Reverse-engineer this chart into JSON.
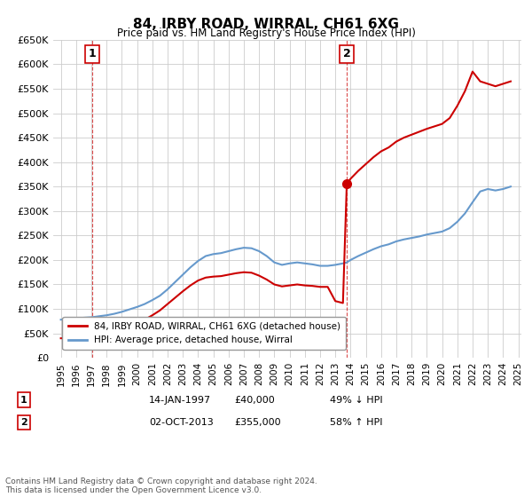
{
  "title": "84, IRBY ROAD, WIRRAL, CH61 6XG",
  "subtitle": "Price paid vs. HM Land Registry's House Price Index (HPI)",
  "xlabel": "",
  "ylabel": "",
  "ylim": [
    0,
    650000
  ],
  "ytick_step": 50000,
  "background_color": "#ffffff",
  "grid_color": "#cccccc",
  "point1_label": "1",
  "point1_date": "14-JAN-1997",
  "point1_price": "£40,000",
  "point1_hpi": "49% ↓ HPI",
  "point1_x": 1997.04,
  "point1_y": 40000,
  "point2_label": "2",
  "point2_date": "02-OCT-2013",
  "point2_price": "£355,000",
  "point2_hpi": "58% ↑ HPI",
  "point2_x": 2013.75,
  "point2_y": 355000,
  "red_color": "#cc0000",
  "blue_color": "#6699cc",
  "legend_label_red": "84, IRBY ROAD, WIRRAL, CH61 6XG (detached house)",
  "legend_label_blue": "HPI: Average price, detached house, Wirral",
  "footnote": "Contains HM Land Registry data © Crown copyright and database right 2024.\nThis data is licensed under the Open Government Licence v3.0.",
  "hpi_x": [
    1995.0,
    1995.5,
    1996.0,
    1996.5,
    1997.04,
    1997.5,
    1998.0,
    1998.5,
    1999.0,
    1999.5,
    2000.0,
    2000.5,
    2001.0,
    2001.5,
    2002.0,
    2002.5,
    2003.0,
    2003.5,
    2004.0,
    2004.5,
    2005.0,
    2005.5,
    2006.0,
    2006.5,
    2007.0,
    2007.5,
    2008.0,
    2008.5,
    2009.0,
    2009.5,
    2010.0,
    2010.5,
    2011.0,
    2011.5,
    2012.0,
    2012.5,
    2013.0,
    2013.5,
    2013.75,
    2014.0,
    2014.5,
    2015.0,
    2015.5,
    2016.0,
    2016.5,
    2017.0,
    2017.5,
    2018.0,
    2018.5,
    2019.0,
    2019.5,
    2020.0,
    2020.5,
    2021.0,
    2021.5,
    2022.0,
    2022.5,
    2023.0,
    2023.5,
    2024.0,
    2024.5
  ],
  "hpi_y": [
    78000,
    79000,
    80000,
    82000,
    83000,
    85000,
    87000,
    90000,
    94000,
    99000,
    104000,
    110000,
    118000,
    127000,
    140000,
    155000,
    170000,
    185000,
    198000,
    208000,
    212000,
    214000,
    218000,
    222000,
    225000,
    224000,
    218000,
    208000,
    195000,
    190000,
    193000,
    195000,
    193000,
    191000,
    188000,
    188000,
    190000,
    193000,
    195000,
    200000,
    208000,
    215000,
    222000,
    228000,
    232000,
    238000,
    242000,
    245000,
    248000,
    252000,
    255000,
    258000,
    265000,
    278000,
    295000,
    318000,
    340000,
    345000,
    342000,
    345000,
    350000
  ],
  "red_x": [
    1995.0,
    1995.5,
    1996.0,
    1996.5,
    1997.04,
    1997.5,
    1998.0,
    1998.5,
    1999.0,
    1999.5,
    2000.0,
    2000.5,
    2001.0,
    2001.5,
    2002.0,
    2002.5,
    2003.0,
    2003.5,
    2004.0,
    2004.5,
    2005.0,
    2005.5,
    2006.0,
    2006.5,
    2007.0,
    2007.5,
    2008.0,
    2008.5,
    2009.0,
    2009.5,
    2010.0,
    2010.5,
    2011.0,
    2011.5,
    2012.0,
    2012.5,
    2013.0,
    2013.5,
    2013.75,
    2014.0,
    2014.5,
    2015.0,
    2015.5,
    2016.0,
    2016.5,
    2017.0,
    2017.5,
    2018.0,
    2018.5,
    2019.0,
    2019.5,
    2020.0,
    2020.5,
    2021.0,
    2021.5,
    2022.0,
    2022.5,
    2023.0,
    2023.5,
    2024.0,
    2024.5
  ],
  "red_y": [
    40000,
    40000,
    40000,
    40000,
    40000,
    42000,
    45000,
    50000,
    56000,
    63000,
    70000,
    78000,
    87000,
    97000,
    110000,
    123000,
    136000,
    148000,
    158000,
    164000,
    166000,
    167000,
    170000,
    173000,
    175000,
    174000,
    168000,
    160000,
    150000,
    146000,
    148000,
    150000,
    148000,
    147000,
    145000,
    145000,
    116000,
    112000,
    355000,
    366000,
    382000,
    396000,
    410000,
    422000,
    430000,
    442000,
    450000,
    456000,
    462000,
    468000,
    473000,
    478000,
    490000,
    515000,
    545000,
    585000,
    565000,
    560000,
    555000,
    560000,
    565000
  ],
  "xtick_years": [
    1995,
    1996,
    1997,
    1998,
    1999,
    2000,
    2001,
    2002,
    2003,
    2004,
    2005,
    2006,
    2007,
    2008,
    2009,
    2010,
    2011,
    2012,
    2013,
    2014,
    2015,
    2016,
    2017,
    2018,
    2019,
    2020,
    2021,
    2022,
    2023,
    2024,
    2025
  ]
}
